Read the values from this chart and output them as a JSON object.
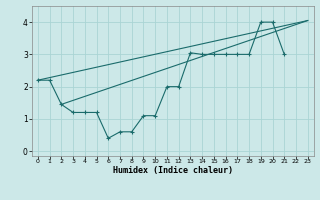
{
  "xlabel": "Humidex (Indice chaleur)",
  "bg_color": "#cce8e8",
  "line_color": "#1a6b6b",
  "grid_color": "#b0d8d8",
  "xlim": [
    -0.5,
    23.5
  ],
  "ylim": [
    -0.15,
    4.5
  ],
  "xticks": [
    0,
    1,
    2,
    3,
    4,
    5,
    6,
    7,
    8,
    9,
    10,
    11,
    12,
    13,
    14,
    15,
    16,
    17,
    18,
    19,
    20,
    21,
    22,
    23
  ],
  "yticks": [
    0,
    1,
    2,
    3,
    4
  ],
  "zigzag_x": [
    0,
    1,
    2,
    3,
    4,
    5,
    6,
    7,
    8,
    9,
    10,
    11,
    12,
    13,
    14,
    15,
    16,
    17,
    18,
    19,
    20,
    21
  ],
  "zigzag_y": [
    2.2,
    2.2,
    1.45,
    1.2,
    1.2,
    1.2,
    0.4,
    0.6,
    0.6,
    1.1,
    1.1,
    2.0,
    2.0,
    3.05,
    3.0,
    3.0,
    3.0,
    3.0,
    3.0,
    4.0,
    4.0,
    3.0
  ],
  "line1_x": [
    0,
    23
  ],
  "line1_y": [
    2.2,
    4.05
  ],
  "line2_x": [
    2,
    23
  ],
  "line2_y": [
    1.45,
    4.05
  ]
}
